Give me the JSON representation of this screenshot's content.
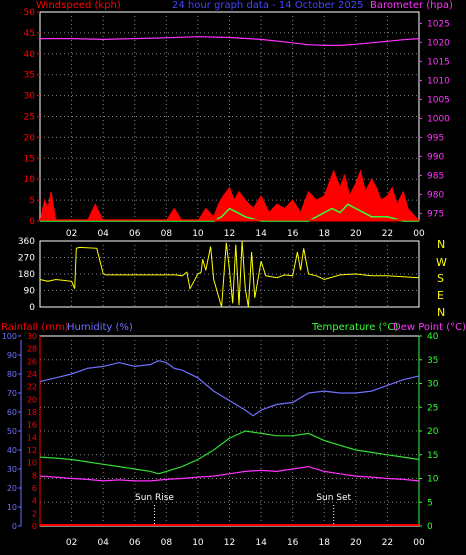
{
  "chart_data": [
    {
      "type": "line",
      "title": "24 hour graph data - 14 October 2025",
      "ylabel_left": "Windspeed (kph)",
      "ylabel_right": "Barometer (hpa)",
      "x_ticks": [
        "02",
        "04",
        "06",
        "08",
        "10",
        "12",
        "14",
        "16",
        "18",
        "20",
        "22",
        "00"
      ],
      "ylim_left": [
        0,
        50
      ],
      "yticks_left": [
        0,
        5,
        10,
        15,
        20,
        25,
        30,
        35,
        40,
        45,
        50
      ],
      "ylim_right": [
        973,
        1028
      ],
      "yticks_right": [
        975,
        980,
        985,
        990,
        995,
        1000,
        1005,
        1010,
        1015,
        1020,
        1025
      ],
      "grid": true,
      "series": [
        {
          "name": "Barometer",
          "color": "#ff33ff",
          "axis": "right",
          "x": [
            0,
            2,
            4,
            6,
            8,
            10,
            12,
            14,
            16,
            17,
            18,
            19,
            20,
            21,
            22,
            23,
            24
          ],
          "values": [
            1021,
            1021,
            1020.8,
            1021,
            1021.2,
            1021.5,
            1021.3,
            1020.8,
            1019.9,
            1019.4,
            1019.2,
            1019.2,
            1019.5,
            1019.9,
            1020.3,
            1020.7,
            1021
          ]
        },
        {
          "name": "Wind Gust",
          "color": "#ff0000",
          "axis": "left",
          "x": [
            0,
            0.3,
            0.5,
            0.7,
            1,
            1.5,
            2,
            3,
            3.5,
            4,
            4.3,
            6,
            8,
            8.5,
            9,
            9.3,
            10,
            10.5,
            11,
            11.3,
            11.6,
            12,
            12.3,
            12.6,
            13,
            13.5,
            14,
            14.5,
            15,
            15.5,
            16,
            16.5,
            17,
            17.5,
            18,
            18.3,
            18.6,
            19,
            19.3,
            19.6,
            20,
            20.3,
            20.6,
            21,
            21.3,
            21.6,
            22,
            22.3,
            22.6,
            23,
            23.3,
            24
          ],
          "values": [
            0,
            5,
            3,
            7,
            0,
            0,
            0,
            0,
            4,
            0,
            0,
            0,
            0,
            3,
            0,
            0,
            0,
            3,
            1,
            4,
            6,
            8,
            5,
            7,
            5,
            3,
            6,
            2,
            4,
            3,
            5,
            2,
            7,
            5,
            6,
            9,
            12,
            8,
            11,
            6,
            9,
            12,
            7,
            10,
            8,
            5,
            6,
            8,
            4,
            7,
            3,
            0
          ]
        },
        {
          "name": "Wind Speed",
          "color": "#33ff33",
          "axis": "left",
          "x": [
            0,
            2,
            4,
            10,
            11,
            11.5,
            12,
            12.5,
            13,
            14,
            16,
            17,
            17.5,
            18,
            18.5,
            19,
            19.5,
            20,
            20.5,
            21,
            22,
            23,
            24
          ],
          "values": [
            0,
            0,
            0,
            0,
            0,
            1,
            3,
            2,
            1,
            0,
            0,
            0,
            1,
            2,
            3,
            2,
            4,
            3,
            2,
            1,
            1,
            0,
            0
          ]
        }
      ]
    },
    {
      "type": "line",
      "ylabel_right": [
        "N",
        "W",
        "S",
        "E",
        "N"
      ],
      "ylim": [
        0,
        360
      ],
      "yticks": [
        0,
        90,
        180,
        270,
        360
      ],
      "x_ticks": [
        "02",
        "04",
        "06",
        "08",
        "10",
        "12",
        "14",
        "16",
        "18",
        "20",
        "22",
        "00"
      ],
      "series": [
        {
          "name": "Wind Direction",
          "color": "#ffff00",
          "x": [
            0,
            0.5,
            1,
            1.5,
            2,
            2.2,
            2.3,
            2.5,
            3.6,
            4,
            4.2,
            6,
            8,
            8.6,
            9,
            9.3,
            9.5,
            10,
            10.2,
            10.3,
            10.5,
            10.8,
            11,
            11.5,
            11.8,
            12,
            12.2,
            12.4,
            12.6,
            12.8,
            13,
            13.2,
            13.4,
            13.6,
            14,
            14.3,
            15,
            15.5,
            16,
            16.3,
            16.5,
            16.7,
            17,
            17.5,
            18,
            19,
            20,
            21,
            22,
            23,
            24
          ],
          "values": [
            150,
            140,
            150,
            145,
            140,
            100,
            320,
            325,
            320,
            180,
            175,
            175,
            175,
            175,
            170,
            190,
            100,
            180,
            190,
            260,
            200,
            330,
            150,
            0,
            350,
            200,
            20,
            340,
            10,
            360,
            100,
            0,
            300,
            50,
            250,
            170,
            160,
            175,
            170,
            300,
            200,
            320,
            180,
            170,
            150,
            175,
            180,
            170,
            170,
            165,
            160
          ]
        }
      ]
    },
    {
      "type": "line",
      "ylabel_left": [
        "Rainfall (mm)",
        "Humidity (%)"
      ],
      "ylabel_right": [
        "Temperature (°C)",
        "Dew Point (°C)"
      ],
      "x_ticks": [
        "02",
        "04",
        "06",
        "08",
        "10",
        "12",
        "14",
        "16",
        "18",
        "20",
        "22",
        "00"
      ],
      "ylim_humidity": [
        0,
        100
      ],
      "yticks_humidity": [
        0,
        10,
        20,
        30,
        40,
        50,
        60,
        70,
        80,
        90,
        100
      ],
      "ylim_rainfall": [
        0,
        30
      ],
      "yticks_rainfall": [
        0,
        2,
        4,
        6,
        8,
        10,
        12,
        14,
        16,
        18,
        20,
        22,
        24,
        26,
        28,
        30
      ],
      "ylim_temperature": [
        0,
        40
      ],
      "yticks_temperature": [
        0,
        5,
        10,
        15,
        20,
        25,
        30,
        35,
        40
      ],
      "annotations": [
        {
          "label": "Sun Rise",
          "x": 7.25
        },
        {
          "label": "Sun Set",
          "x": 18.6
        }
      ],
      "grid": true,
      "series": [
        {
          "name": "Humidity",
          "color": "#7070ff",
          "axis": "humidity",
          "x": [
            0,
            1,
            2,
            3,
            4,
            5,
            6,
            7,
            7.5,
            8,
            8.5,
            9,
            10,
            11,
            12,
            13,
            13.5,
            14,
            15,
            16,
            17,
            18,
            19,
            20,
            21,
            22,
            23,
            24
          ],
          "values": [
            76,
            78,
            80,
            83,
            84,
            86,
            84,
            85,
            87,
            86,
            83,
            82,
            78,
            71,
            66,
            61,
            58,
            61,
            64,
            65,
            70,
            71,
            70,
            70,
            71,
            74,
            77,
            79
          ]
        },
        {
          "name": "Temperature",
          "color": "#33dd33",
          "axis": "temperature",
          "x": [
            0,
            1,
            2,
            3,
            4,
            5,
            6,
            7,
            7.5,
            8,
            9,
            10,
            11,
            12,
            13,
            14,
            15,
            16,
            17,
            18,
            19,
            20,
            21,
            22,
            23,
            24
          ],
          "values": [
            14.5,
            14.3,
            14.0,
            13.5,
            13.0,
            12.5,
            12.0,
            11.5,
            11.0,
            11.5,
            12.5,
            14.0,
            16.0,
            18.5,
            20.0,
            19.5,
            19.0,
            19.0,
            19.5,
            18.0,
            17.0,
            16.0,
            15.5,
            15.0,
            14.5,
            14.0
          ]
        },
        {
          "name": "Dew Point",
          "color": "#ff33ff",
          "axis": "temperature",
          "x": [
            0,
            1,
            2,
            3,
            4,
            5,
            6,
            7,
            8,
            9,
            10,
            11,
            12,
            13,
            14,
            15,
            16,
            17,
            18,
            19,
            20,
            21,
            22,
            23,
            24
          ],
          "values": [
            10.5,
            10.3,
            10.0,
            9.8,
            9.5,
            9.7,
            9.5,
            9.5,
            9.8,
            10.0,
            10.3,
            10.5,
            11.0,
            11.5,
            11.7,
            11.5,
            12.0,
            12.5,
            11.5,
            11.0,
            10.5,
            10.3,
            10.0,
            9.8,
            9.5
          ]
        },
        {
          "name": "Rainfall",
          "color": "#ff0000",
          "axis": "rainfall",
          "x": [
            0,
            24
          ],
          "values": [
            0,
            0
          ]
        }
      ]
    }
  ],
  "colors": {
    "windspeed_label": "#ff0000",
    "barometer_label": "#ff33ff",
    "title": "#4444ff",
    "rainfall_label": "#ff0000",
    "humidity_label": "#7070ff",
    "temperature_label": "#33ff33",
    "dewpoint_label": "#ff33ff",
    "direction_letters": "#ffff00",
    "panel_border": "#ffffff",
    "grid": "#888888",
    "tick_text": "#ffffff"
  }
}
